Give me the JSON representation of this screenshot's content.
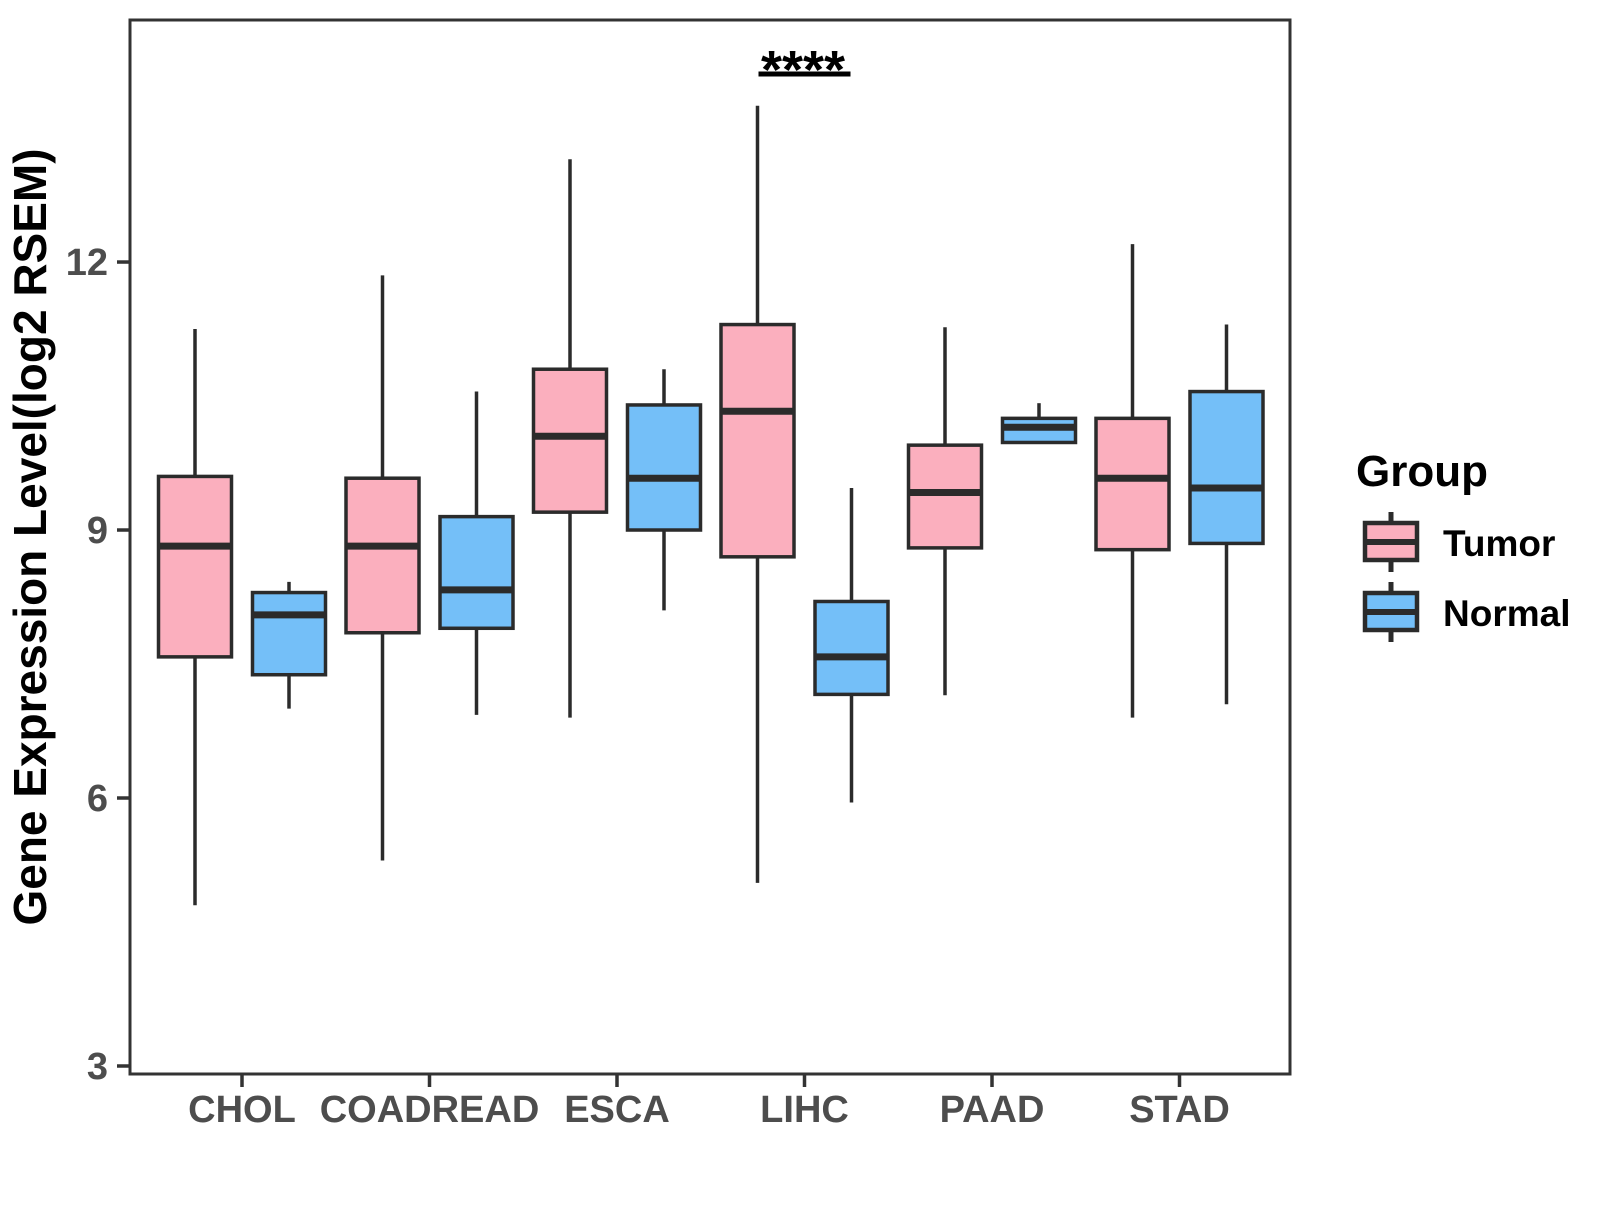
{
  "chart_data": {
    "type": "boxplot",
    "title": "",
    "xlabel": "",
    "ylabel": "Gene Expression Level(log2 RSEM)",
    "yticks": [
      3,
      6,
      9,
      12
    ],
    "ylim": [
      2.9,
      14.0
    ],
    "grid": false,
    "legend_position": "right",
    "legend_title": "Group",
    "categories": [
      "CHOL",
      "COADREAD",
      "ESCA",
      "LIHC",
      "PAAD",
      "STAD"
    ],
    "series": [
      {
        "name": "Tumor",
        "fill": "#FBAFBE",
        "boxes": [
          {
            "category": "CHOL",
            "min": 4.8,
            "q1": 7.58,
            "median": 8.82,
            "q3": 9.6,
            "max": 11.25
          },
          {
            "category": "COADREAD",
            "min": 5.3,
            "q1": 7.85,
            "median": 8.82,
            "q3": 9.58,
            "max": 11.85
          },
          {
            "category": "ESCA",
            "min": 6.9,
            "q1": 9.2,
            "median": 10.05,
            "q3": 10.8,
            "max": 13.15
          },
          {
            "category": "LIHC",
            "min": 5.05,
            "q1": 8.7,
            "median": 10.33,
            "q3": 11.3,
            "max": 13.75
          },
          {
            "category": "PAAD",
            "min": 7.15,
            "q1": 8.8,
            "median": 9.42,
            "q3": 9.95,
            "max": 11.27
          },
          {
            "category": "STAD",
            "min": 6.9,
            "q1": 8.78,
            "median": 9.58,
            "q3": 10.25,
            "max": 12.2
          }
        ]
      },
      {
        "name": "Normal",
        "fill": "#74BFF8",
        "boxes": [
          {
            "category": "CHOL",
            "min": 7.0,
            "q1": 7.38,
            "median": 8.05,
            "q3": 8.3,
            "max": 8.42
          },
          {
            "category": "COADREAD",
            "min": 6.93,
            "q1": 7.9,
            "median": 8.33,
            "q3": 9.15,
            "max": 10.55
          },
          {
            "category": "ESCA",
            "min": 8.1,
            "q1": 9.0,
            "median": 9.58,
            "q3": 10.4,
            "max": 10.8
          },
          {
            "category": "LIHC",
            "min": 5.95,
            "q1": 7.16,
            "median": 7.58,
            "q3": 8.2,
            "max": 9.47
          },
          {
            "category": "PAAD",
            "min": 9.98,
            "q1": 9.98,
            "median": 10.15,
            "q3": 10.25,
            "max": 10.42
          },
          {
            "category": "STAD",
            "min": 7.05,
            "q1": 8.85,
            "median": 9.47,
            "q3": 10.55,
            "max": 11.3
          }
        ]
      }
    ],
    "significance": [
      {
        "label": "****",
        "category": "LIHC"
      }
    ]
  },
  "colors": {
    "tumor_fill": "#FBAFBE",
    "normal_fill": "#74BFF8",
    "box_stroke": "#2B2B2B",
    "panel_border": "#333333",
    "tick_label": "#4D4D4D",
    "axis_title": "#000000"
  }
}
